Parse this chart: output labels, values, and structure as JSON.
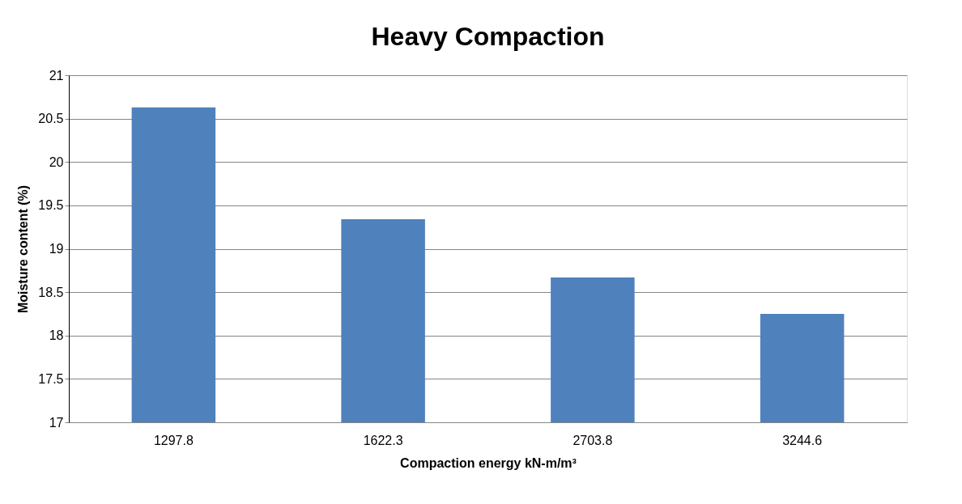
{
  "chart_data": {
    "type": "bar",
    "title": "Heavy Compaction",
    "xlabel": "Compaction energy kN-m/m³",
    "ylabel": "Moisture content (%)",
    "categories": [
      "1297.8",
      "1622.3",
      "2703.8",
      "3244.6"
    ],
    "values": [
      20.63,
      19.34,
      18.67,
      18.25
    ],
    "color": "#4f81bd",
    "ylim": [
      17,
      21
    ],
    "yticks": [
      17,
      17.5,
      18,
      18.5,
      19,
      19.5,
      20,
      20.5,
      21
    ],
    "grid": "y"
  }
}
